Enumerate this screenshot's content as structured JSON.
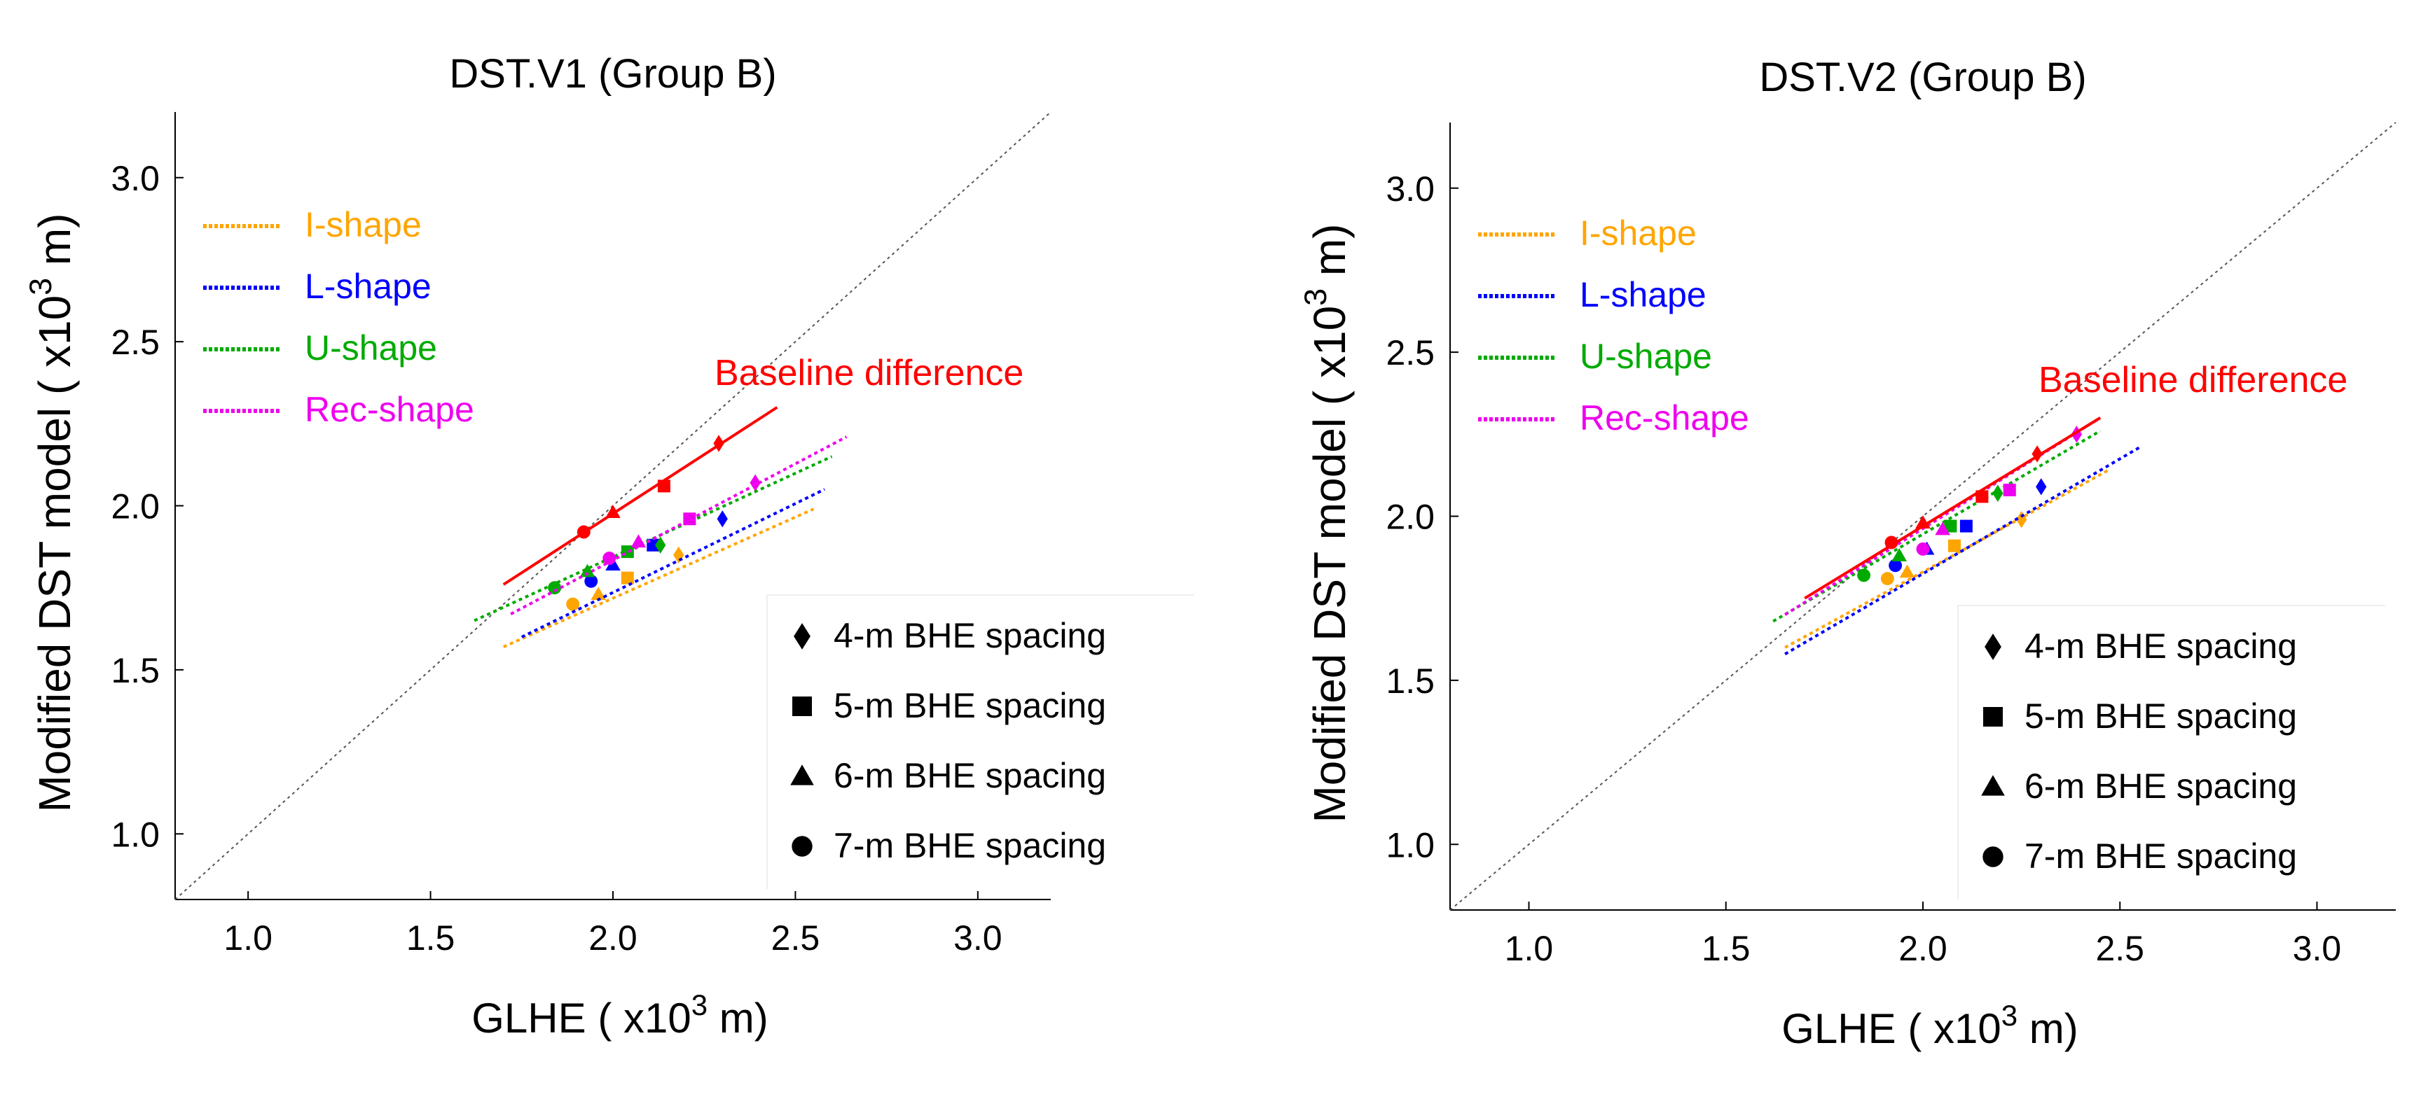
{
  "chart_data": [
    {
      "type": "scatter",
      "title": "DST.V1 (Group B)",
      "xlabel": {
        "text": "GLHE ( x10",
        "sup": "3",
        "suffix": " m)"
      },
      "ylabel": {
        "text": "Modified DST model ( x10",
        "sup": "3",
        "suffix": " m)"
      },
      "xlim": [
        0.8,
        3.2
      ],
      "ylim": [
        0.8,
        3.2
      ],
      "xticks": [
        1.0,
        1.5,
        2.0,
        2.5,
        3.0
      ],
      "yticks": [
        1.0,
        1.5,
        2.0,
        2.5,
        3.0
      ],
      "tick_labels": [
        "1.0",
        "1.5",
        "2.0",
        "2.5",
        "3.0"
      ],
      "grid": false,
      "identity_line": true,
      "annotation": {
        "text": "Baseline difference",
        "color": "#ff0000"
      },
      "series": [
        {
          "name": "I-shape",
          "color": "#ffa500",
          "points": [
            [
              2.18,
              1.85
            ],
            [
              2.04,
              1.78
            ],
            [
              1.96,
              1.73
            ],
            [
              1.89,
              1.7
            ]
          ],
          "fit": [
            [
              1.7,
              1.57
            ],
            [
              2.55,
              1.99
            ]
          ]
        },
        {
          "name": "L-shape",
          "color": "#0000ff",
          "points": [
            [
              2.3,
              1.96
            ],
            [
              2.11,
              1.88
            ],
            [
              2.0,
              1.82
            ],
            [
              1.94,
              1.77
            ]
          ],
          "fit": [
            [
              1.75,
              1.6
            ],
            [
              2.58,
              2.05
            ]
          ]
        },
        {
          "name": "U-shape",
          "color": "#00aa00",
          "points": [
            [
              2.13,
              1.88
            ],
            [
              2.04,
              1.86
            ],
            [
              1.93,
              1.8
            ],
            [
              1.84,
              1.75
            ]
          ],
          "fit": [
            [
              1.62,
              1.65
            ],
            [
              2.6,
              2.15
            ]
          ]
        },
        {
          "name": "Rec-shape",
          "color": "#ee00ee",
          "points": [
            [
              2.39,
              2.07
            ],
            [
              2.21,
              1.96
            ],
            [
              2.07,
              1.89
            ],
            [
              1.99,
              1.84
            ]
          ],
          "fit": [
            [
              1.72,
              1.67
            ],
            [
              2.64,
              2.21
            ]
          ]
        },
        {
          "name": "Baseline difference",
          "color": "#ff0000",
          "points": [
            [
              2.29,
              2.19
            ],
            [
              2.14,
              2.06
            ],
            [
              2.0,
              1.98
            ],
            [
              1.92,
              1.92
            ]
          ],
          "fit": [
            [
              1.7,
              1.76
            ],
            [
              2.45,
              2.3
            ]
          ],
          "solid": true
        }
      ],
      "legend": {
        "position": "top-left",
        "entries": [
          "I-shape",
          "L-shape",
          "U-shape",
          "Rec-shape"
        ]
      },
      "marker_legend": {
        "position": "bottom-right",
        "entries": [
          {
            "marker": "diamond",
            "label": "4-m BHE spacing"
          },
          {
            "marker": "square",
            "label": "5-m BHE spacing"
          },
          {
            "marker": "triangle",
            "label": "6-m BHE spacing"
          },
          {
            "marker": "circle",
            "label": "7-m BHE spacing"
          }
        ]
      }
    },
    {
      "type": "scatter",
      "title": "DST.V2 (Group B)",
      "xlabel": {
        "text": "GLHE ( x10",
        "sup": "3",
        "suffix": " m)"
      },
      "ylabel": {
        "text": "Modified DST model ( x10",
        "sup": "3",
        "suffix": " m)"
      },
      "xlim": [
        0.8,
        3.2
      ],
      "ylim": [
        0.8,
        3.2
      ],
      "xticks": [
        1.0,
        1.5,
        2.0,
        2.5,
        3.0
      ],
      "yticks": [
        1.0,
        1.5,
        2.0,
        2.5,
        3.0
      ],
      "tick_labels": [
        "1.0",
        "1.5",
        "2.0",
        "2.5",
        "3.0"
      ],
      "grid": false,
      "identity_line": true,
      "annotation": {
        "text": "Baseline difference",
        "color": "#ff0000"
      },
      "series": [
        {
          "name": "I-shape",
          "color": "#ffa500",
          "points": [
            [
              2.25,
              1.99
            ],
            [
              2.08,
              1.91
            ],
            [
              1.96,
              1.83
            ],
            [
              1.91,
              1.81
            ]
          ],
          "fit": [
            [
              1.65,
              1.6
            ],
            [
              2.47,
              2.14
            ]
          ]
        },
        {
          "name": "L-shape",
          "color": "#0000ff",
          "points": [
            [
              2.3,
              2.09
            ],
            [
              2.11,
              1.97
            ],
            [
              2.01,
              1.9
            ],
            [
              1.93,
              1.85
            ]
          ],
          "fit": [
            [
              1.65,
              1.58
            ],
            [
              2.55,
              2.21
            ]
          ]
        },
        {
          "name": "U-shape",
          "color": "#00aa00",
          "points": [
            [
              2.19,
              2.07
            ],
            [
              2.07,
              1.97
            ],
            [
              1.94,
              1.88
            ],
            [
              1.85,
              1.82
            ]
          ],
          "fit": [
            [
              1.62,
              1.68
            ],
            [
              2.45,
              2.26
            ]
          ]
        },
        {
          "name": "Rec-shape",
          "color": "#ee00ee",
          "points": [
            [
              2.39,
              2.25
            ],
            [
              2.22,
              2.08
            ],
            [
              2.05,
              1.96
            ],
            [
              2.0,
              1.9
            ]
          ],
          "fit": [
            [
              1.65,
              1.7
            ],
            [
              2.45,
              2.3
            ]
          ]
        },
        {
          "name": "Baseline difference",
          "color": "#ff0000",
          "points": [
            [
              2.29,
              2.19
            ],
            [
              2.15,
              2.06
            ],
            [
              2.0,
              1.98
            ],
            [
              1.92,
              1.92
            ]
          ],
          "fit": [
            [
              1.7,
              1.75
            ],
            [
              2.45,
              2.3
            ]
          ],
          "solid": true
        }
      ],
      "legend": {
        "position": "top-left",
        "entries": [
          "I-shape",
          "L-shape",
          "U-shape",
          "Rec-shape"
        ]
      },
      "marker_legend": {
        "position": "bottom-right",
        "entries": [
          {
            "marker": "diamond",
            "label": "4-m BHE spacing"
          },
          {
            "marker": "square",
            "label": "5-m BHE spacing"
          },
          {
            "marker": "triangle",
            "label": "6-m BHE spacing"
          },
          {
            "marker": "circle",
            "label": "7-m BHE spacing"
          }
        ]
      }
    }
  ]
}
